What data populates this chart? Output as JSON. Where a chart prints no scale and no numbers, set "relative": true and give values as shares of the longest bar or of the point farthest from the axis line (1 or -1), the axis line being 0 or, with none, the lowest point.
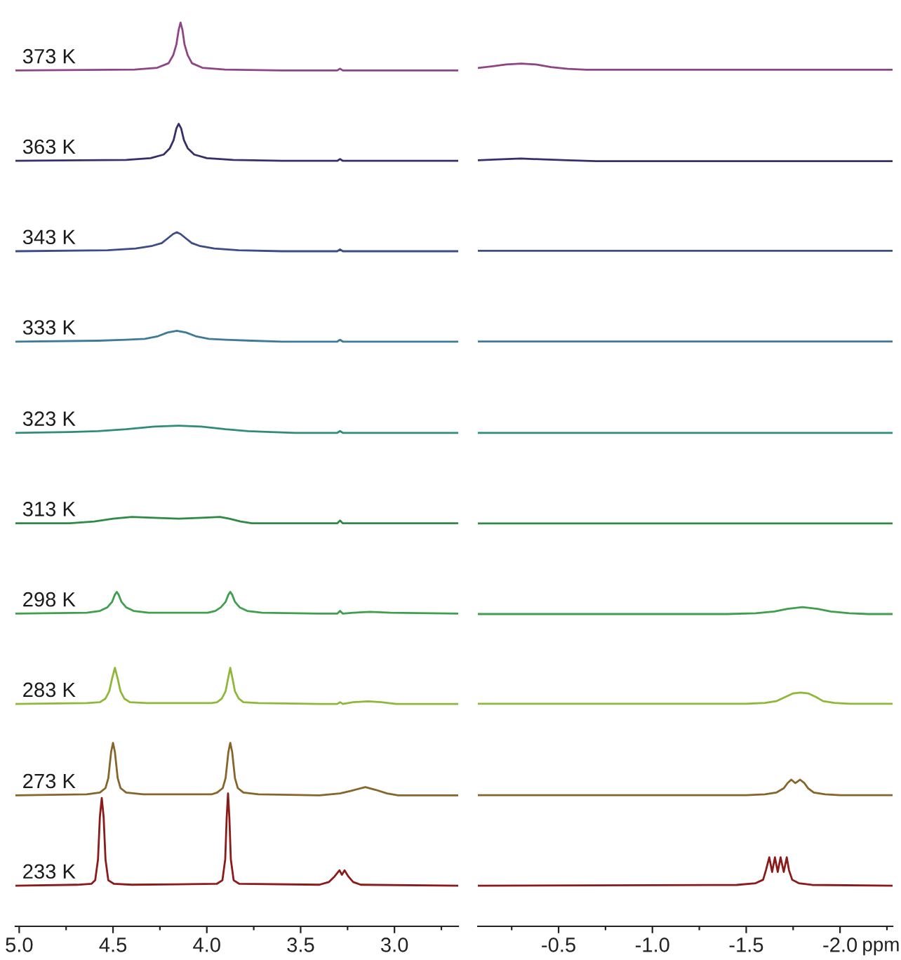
{
  "chart_data": [
    {
      "type": "line",
      "relative": true,
      "xlim": [
        5.02,
        2.66
      ],
      "xticks": [
        {
          "value": 5.0,
          "label": "5.0"
        },
        {
          "value": 4.75,
          "label": null
        },
        {
          "value": 4.5,
          "label": "4.5"
        },
        {
          "value": 4.25,
          "label": null
        },
        {
          "value": 4.0,
          "label": "4.0"
        },
        {
          "value": 3.75,
          "label": null
        },
        {
          "value": 3.5,
          "label": "3.5"
        },
        {
          "value": 3.25,
          "label": null
        },
        {
          "value": 3.0,
          "label": "3.0"
        },
        {
          "value": 2.75,
          "label": null
        }
      ],
      "series": [
        {
          "name": "373 K",
          "color": "#8e4585",
          "x": [
            5.02,
            4.384,
            4.264,
            4.204,
            4.179,
            4.162,
            4.15,
            4.14,
            4.13,
            4.119,
            4.102,
            4.079,
            4.024,
            3.904,
            3.6,
            3.305,
            3.29,
            3.275,
            2.66
          ],
          "values": [
            0.947,
            0.948,
            0.95,
            0.955,
            0.964,
            0.976,
            0.992,
            1.0,
            0.992,
            0.976,
            0.964,
            0.955,
            0.95,
            0.948,
            0.947,
            0.947,
            0.949,
            0.947,
            0.947
          ]
        },
        {
          "name": "363 K",
          "color": "#35306a",
          "x": [
            5.02,
            4.43,
            4.3,
            4.23,
            4.197,
            4.177,
            4.162,
            4.15,
            4.137,
            4.122,
            4.102,
            4.067,
            4.0,
            3.86,
            3.6,
            3.305,
            3.29,
            3.275,
            2.66
          ],
          "values": [
            0.847,
            0.848,
            0.85,
            0.854,
            0.861,
            0.87,
            0.883,
            0.888,
            0.883,
            0.87,
            0.861,
            0.854,
            0.85,
            0.848,
            0.847,
            0.847,
            0.849,
            0.847,
            0.847
          ]
        },
        {
          "name": "343 K",
          "color": "#3b4c86",
          "x": [
            5.02,
            4.53,
            4.38,
            4.29,
            4.24,
            4.21,
            4.18,
            4.16,
            4.14,
            4.11,
            4.08,
            4.04,
            3.96,
            3.83,
            3.6,
            3.305,
            3.29,
            3.275,
            2.66
          ],
          "values": [
            0.747,
            0.748,
            0.75,
            0.753,
            0.756,
            0.761,
            0.766,
            0.768,
            0.766,
            0.761,
            0.756,
            0.753,
            0.75,
            0.748,
            0.747,
            0.747,
            0.749,
            0.747,
            0.747
          ]
        },
        {
          "name": "333 K",
          "color": "#3f7a98",
          "x": [
            5.02,
            4.58,
            4.43,
            4.33,
            4.26,
            4.21,
            4.16,
            4.11,
            4.06,
            3.99,
            3.9,
            3.76,
            3.6,
            3.305,
            3.29,
            3.275,
            2.66
          ],
          "values": [
            0.647,
            0.648,
            0.649,
            0.65,
            0.653,
            0.657,
            0.659,
            0.657,
            0.653,
            0.65,
            0.649,
            0.648,
            0.647,
            0.647,
            0.649,
            0.647,
            0.647
          ]
        },
        {
          "name": "323 K",
          "color": "#2f8c7a",
          "x": [
            5.02,
            4.73,
            4.58,
            4.43,
            4.28,
            4.15,
            4.03,
            3.9,
            3.78,
            3.66,
            3.53,
            3.305,
            3.29,
            3.275,
            2.66
          ],
          "values": [
            0.546,
            0.547,
            0.548,
            0.55,
            0.553,
            0.554,
            0.553,
            0.55,
            0.548,
            0.547,
            0.546,
            0.546,
            0.548,
            0.546,
            0.546
          ]
        },
        {
          "name": "313 K",
          "color": "#2e8a45",
          "x": [
            5.02,
            4.73,
            4.6,
            4.5,
            4.4,
            4.28,
            4.15,
            4.03,
            3.93,
            3.88,
            3.82,
            3.76,
            3.6,
            3.305,
            3.29,
            3.275,
            2.66
          ],
          "values": [
            0.446,
            0.446,
            0.448,
            0.451,
            0.453,
            0.452,
            0.451,
            0.452,
            0.453,
            0.451,
            0.448,
            0.446,
            0.446,
            0.446,
            0.449,
            0.446,
            0.446
          ]
        },
        {
          "name": "298 K",
          "color": "#3f9f4f",
          "x": [
            5.02,
            4.64,
            4.57,
            4.53,
            4.505,
            4.49,
            4.48,
            4.47,
            4.455,
            4.43,
            4.39,
            4.31,
            3.995,
            3.955,
            3.925,
            3.9,
            3.885,
            3.875,
            3.865,
            3.85,
            3.825,
            3.785,
            3.705,
            3.4,
            3.305,
            3.29,
            3.275,
            3.22,
            3.13,
            3.02,
            2.66
          ],
          "values": [
            0.346,
            0.347,
            0.349,
            0.353,
            0.359,
            0.367,
            0.37,
            0.367,
            0.359,
            0.353,
            0.349,
            0.347,
            0.347,
            0.349,
            0.353,
            0.359,
            0.367,
            0.37,
            0.367,
            0.359,
            0.353,
            0.349,
            0.347,
            0.346,
            0.346,
            0.349,
            0.346,
            0.347,
            0.348,
            0.347,
            0.346
          ]
        },
        {
          "name": "283 K",
          "color": "#8fb83a",
          "x": [
            5.02,
            4.64,
            4.57,
            4.54,
            4.52,
            4.505,
            4.49,
            4.475,
            4.46,
            4.44,
            4.41,
            4.32,
            3.975,
            3.945,
            3.92,
            3.9,
            3.887,
            3.875,
            3.863,
            3.85,
            3.83,
            3.805,
            3.725,
            3.4,
            3.305,
            3.29,
            3.275,
            3.22,
            3.14,
            3.07,
            2.99,
            2.66
          ],
          "values": [
            0.246,
            0.247,
            0.248,
            0.252,
            0.26,
            0.274,
            0.286,
            0.274,
            0.26,
            0.252,
            0.248,
            0.247,
            0.247,
            0.248,
            0.252,
            0.26,
            0.274,
            0.286,
            0.274,
            0.26,
            0.252,
            0.248,
            0.247,
            0.246,
            0.246,
            0.248,
            0.246,
            0.248,
            0.249,
            0.248,
            0.246,
            0.246
          ]
        },
        {
          "name": "273 K",
          "color": "#86652a",
          "x": [
            5.02,
            4.64,
            4.57,
            4.54,
            4.525,
            4.51,
            4.5,
            4.49,
            4.475,
            4.46,
            4.43,
            4.34,
            3.975,
            3.945,
            3.915,
            3.9,
            3.885,
            3.875,
            3.865,
            3.85,
            3.835,
            3.805,
            3.725,
            3.4,
            3.29,
            3.23,
            3.155,
            3.1,
            3.04,
            2.98,
            2.66
          ],
          "values": [
            0.145,
            0.146,
            0.148,
            0.153,
            0.164,
            0.193,
            0.203,
            0.193,
            0.164,
            0.153,
            0.148,
            0.146,
            0.146,
            0.148,
            0.153,
            0.164,
            0.193,
            0.203,
            0.193,
            0.164,
            0.153,
            0.148,
            0.146,
            0.145,
            0.147,
            0.15,
            0.154,
            0.151,
            0.147,
            0.145,
            0.145
          ]
        },
        {
          "name": "233 K",
          "color": "#8b1a1a",
          "x": [
            5.02,
            4.69,
            4.615,
            4.595,
            4.58,
            4.57,
            4.56,
            4.55,
            4.54,
            4.525,
            4.495,
            4.4,
            3.947,
            3.917,
            3.902,
            3.894,
            3.887,
            3.88,
            3.872,
            3.857,
            3.827,
            3.4,
            3.35,
            3.32,
            3.293,
            3.28,
            3.266,
            3.245,
            3.22,
            3.18,
            2.66
          ],
          "values": [
            0.045,
            0.046,
            0.047,
            0.051,
            0.074,
            0.121,
            0.142,
            0.121,
            0.074,
            0.051,
            0.047,
            0.046,
            0.047,
            0.051,
            0.074,
            0.121,
            0.147,
            0.121,
            0.074,
            0.051,
            0.047,
            0.046,
            0.049,
            0.055,
            0.062,
            0.057,
            0.062,
            0.055,
            0.049,
            0.046,
            0.045
          ]
        }
      ]
    },
    {
      "type": "line",
      "relative": true,
      "xlabel": "ppm",
      "xlim": [
        -0.07,
        -2.28
      ],
      "xticks": [
        {
          "value": -0.25,
          "label": null
        },
        {
          "value": -0.5,
          "label": "-0.5"
        },
        {
          "value": -0.75,
          "label": null
        },
        {
          "value": -1.0,
          "label": "-1.0"
        },
        {
          "value": -1.25,
          "label": null
        },
        {
          "value": -1.5,
          "label": "-1.5"
        },
        {
          "value": -1.75,
          "label": null
        },
        {
          "value": -2.0,
          "label": "-2.0"
        },
        {
          "value": -2.25,
          "label": null
        }
      ],
      "series": [
        {
          "color": "#8e4585",
          "x": [
            -0.07,
            -0.15,
            -0.22,
            -0.3,
            -0.38,
            -0.46,
            -0.55,
            -0.65,
            -2.28
          ],
          "values": [
            0.995,
            0.997,
            0.999,
            1.0,
            0.999,
            0.996,
            0.994,
            0.993,
            0.993
          ]
        },
        {
          "color": "#35306a",
          "x": [
            -0.07,
            -0.18,
            -0.3,
            -0.42,
            -0.55,
            -0.7,
            -2.28
          ],
          "values": [
            0.888,
            0.889,
            0.89,
            0.889,
            0.888,
            0.887,
            0.887
          ]
        },
        {
          "color": "#3b4c86",
          "x": [
            -0.07,
            -1.0,
            -2.28
          ],
          "values": [
            0.783,
            0.783,
            0.783
          ]
        },
        {
          "color": "#3f7a98",
          "x": [
            -0.07,
            -1.0,
            -2.28
          ],
          "values": [
            0.678,
            0.678,
            0.678
          ]
        },
        {
          "color": "#2f8c7a",
          "x": [
            -0.07,
            -1.0,
            -2.28
          ],
          "values": [
            0.572,
            0.572,
            0.572
          ]
        },
        {
          "color": "#2e8a45",
          "x": [
            -0.07,
            -1.0,
            -2.28
          ],
          "values": [
            0.467,
            0.467,
            0.467
          ]
        },
        {
          "color": "#3f9f4f",
          "x": [
            -0.07,
            -1.4,
            -1.55,
            -1.65,
            -1.72,
            -1.8,
            -1.88,
            -1.95,
            -2.05,
            -2.15,
            -2.28
          ],
          "values": [
            0.362,
            0.362,
            0.363,
            0.365,
            0.368,
            0.37,
            0.368,
            0.365,
            0.363,
            0.362,
            0.362
          ]
        },
        {
          "color": "#8fb83a",
          "x": [
            -0.07,
            -1.5,
            -1.6,
            -1.66,
            -1.71,
            -1.75,
            -1.79,
            -1.83,
            -1.87,
            -1.91,
            -1.97,
            -2.05,
            -2.28
          ],
          "values": [
            0.258,
            0.258,
            0.259,
            0.261,
            0.266,
            0.27,
            0.271,
            0.27,
            0.266,
            0.261,
            0.259,
            0.258,
            0.258
          ]
        },
        {
          "color": "#86652a",
          "x": [
            -0.07,
            -1.5,
            -1.6,
            -1.66,
            -1.7,
            -1.72,
            -1.74,
            -1.762,
            -1.787,
            -1.81,
            -1.83,
            -1.86,
            -1.92,
            -2.0,
            -2.28
          ],
          "values": [
            0.152,
            0.152,
            0.153,
            0.155,
            0.16,
            0.166,
            0.17,
            0.166,
            0.17,
            0.166,
            0.16,
            0.155,
            0.153,
            0.152,
            0.152
          ]
        },
        {
          "color": "#8b1a1a",
          "x": [
            -0.07,
            -1.45,
            -1.55,
            -1.59,
            -1.605,
            -1.623,
            -1.638,
            -1.653,
            -1.668,
            -1.683,
            -1.7,
            -1.716,
            -1.728,
            -1.745,
            -1.78,
            -1.85,
            -2.28
          ],
          "values": [
            0.047,
            0.048,
            0.05,
            0.054,
            0.065,
            0.08,
            0.063,
            0.08,
            0.063,
            0.08,
            0.063,
            0.08,
            0.065,
            0.054,
            0.05,
            0.048,
            0.047
          ]
        }
      ]
    }
  ]
}
